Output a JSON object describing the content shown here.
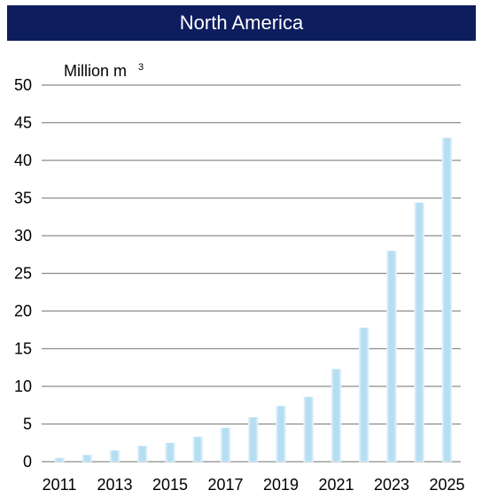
{
  "header": {
    "title": "North America"
  },
  "chart_data": {
    "type": "bar",
    "title": "North America",
    "ylabel": "Million m",
    "ylabel_superscript": "3",
    "xlabel": "",
    "ylim": [
      0,
      50
    ],
    "yticks": [
      0,
      5,
      10,
      15,
      20,
      25,
      30,
      35,
      40,
      45,
      50
    ],
    "categories": [
      "2011",
      "2012",
      "2013",
      "2014",
      "2015",
      "2016",
      "2017",
      "2018",
      "2019",
      "2020",
      "2021",
      "2022",
      "2023",
      "2024",
      "2025"
    ],
    "xtick_labels": [
      "2011",
      "2013",
      "2015",
      "2017",
      "2019",
      "2021",
      "2023",
      "2025"
    ],
    "values": [
      0.5,
      0.9,
      1.5,
      2.1,
      2.5,
      3.3,
      4.5,
      5.9,
      7.4,
      8.6,
      12.3,
      17.8,
      28.0,
      34.4,
      43.0
    ],
    "grid": true,
    "colors": {
      "bar": "#bfe3f5",
      "bar_edge": "#e6f4fb",
      "header": "#0d1d5e"
    }
  }
}
